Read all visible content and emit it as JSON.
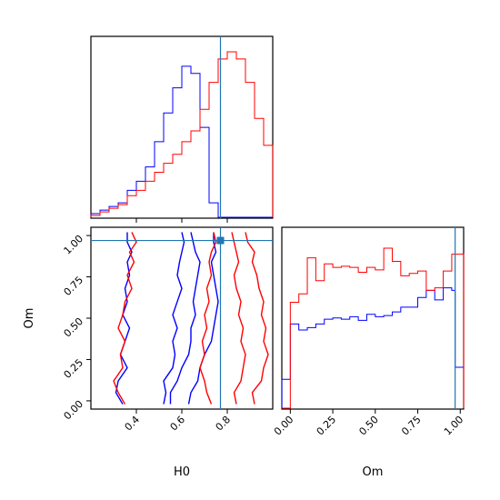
{
  "colors": {
    "series_a": "#0000ff",
    "series_b": "#ff0000",
    "truth": "#1f77b4",
    "axes": "#000000",
    "background": "#ffffff"
  },
  "chart_data": {
    "type": "corner",
    "parameters": [
      "H0",
      "Om"
    ],
    "truth": {
      "H0": 0.77,
      "Om": 0.97
    },
    "panels": [
      {
        "id": "hist-h0",
        "type": "histogram-step",
        "xlim": [
          0.2,
          1.0
        ],
        "x_tick_values": [
          0.4,
          0.6,
          0.8
        ],
        "y_scale": "relative counts",
        "bins": [
          0.2,
          0.24,
          0.28,
          0.32,
          0.36,
          0.4,
          0.44,
          0.48,
          0.52,
          0.56,
          0.6,
          0.64,
          0.68,
          0.72,
          0.76,
          0.8,
          0.84,
          0.88,
          0.92,
          0.96,
          1.0
        ],
        "series": [
          {
            "color": "blue",
            "counts": [
              2,
              4,
              6,
              8,
              15,
              20,
              28,
              42,
              58,
              72,
              84,
              80,
              50,
              8,
              0,
              0,
              0,
              0,
              0,
              0
            ]
          },
          {
            "color": "red",
            "counts": [
              1,
              3,
              5,
              7,
              12,
              15,
              20,
              25,
              30,
              35,
              42,
              48,
              60,
              75,
              88,
              92,
              88,
              75,
              55,
              40
            ]
          }
        ]
      },
      {
        "id": "contour-h0-om",
        "type": "contour",
        "xlabel": "H0",
        "ylabel": "Om",
        "xlim": [
          0.2,
          1.0
        ],
        "ylim": [
          -0.05,
          1.05
        ],
        "x_ticks": [
          "0.4",
          "0.6",
          "0.8"
        ],
        "x_tick_values": [
          0.4,
          0.6,
          0.8
        ],
        "y_ticks": [
          "0.00",
          "0.25",
          "0.50",
          "0.75",
          "1.00"
        ],
        "y_tick_values": [
          0.0,
          0.25,
          0.5,
          0.75,
          1.0
        ],
        "marker": {
          "H0": 0.77,
          "Om": 0.97
        },
        "contours": [
          {
            "color": "blue",
            "level": "outer",
            "x": [
              0.34,
              0.31,
              0.32,
              0.36,
              0.33,
              0.35,
              0.37,
              0.34,
              0.36,
              0.35,
              0.37,
              0.36,
              0.38,
              0.36,
              0.36
            ]
          },
          {
            "color": "blue",
            "level": "outer",
            "x": [
              0.63,
              0.64,
              0.67,
              0.68,
              0.7,
              0.73,
              0.74,
              0.75,
              0.76,
              0.75,
              0.74,
              0.73,
              0.75,
              0.74,
              0.74
            ]
          },
          {
            "color": "blue",
            "level": "inner",
            "x": [
              0.52,
              0.53,
              0.52,
              0.56,
              0.57,
              0.56,
              0.58,
              0.56,
              0.58,
              0.6,
              0.58,
              0.59,
              0.6,
              0.61,
              0.6
            ]
          },
          {
            "color": "blue",
            "level": "inner",
            "x": [
              0.55,
              0.55,
              0.58,
              0.6,
              0.63,
              0.64,
              0.64,
              0.66,
              0.65,
              0.66,
              0.67,
              0.68,
              0.66,
              0.65,
              0.64
            ]
          },
          {
            "color": "red",
            "level": "outer",
            "x": [
              0.35,
              0.32,
              0.3,
              0.34,
              0.33,
              0.35,
              0.32,
              0.34,
              0.35,
              0.38,
              0.36,
              0.39,
              0.37,
              0.4,
              0.38
            ]
          },
          {
            "color": "red",
            "level": "outer",
            "x": [
              0.92,
              0.91,
              0.95,
              0.96,
              0.98,
              0.96,
              0.97,
              0.95,
              0.96,
              0.94,
              0.93,
              0.91,
              0.92,
              0.89,
              0.88
            ]
          },
          {
            "color": "red",
            "level": "inner",
            "x": [
              0.73,
              0.71,
              0.7,
              0.68,
              0.7,
              0.69,
              0.71,
              0.7,
              0.72,
              0.71,
              0.73,
              0.72,
              0.73,
              0.75,
              0.74
            ]
          },
          {
            "color": "red",
            "level": "inner",
            "x": [
              0.84,
              0.83,
              0.86,
              0.87,
              0.88,
              0.86,
              0.87,
              0.85,
              0.86,
              0.84,
              0.83,
              0.85,
              0.84,
              0.83,
              0.82
            ]
          }
        ],
        "contour_y": [
          -0.02,
          0.05,
          0.12,
          0.2,
          0.28,
          0.36,
          0.44,
          0.52,
          0.6,
          0.68,
          0.76,
          0.84,
          0.9,
          0.96,
          1.02
        ]
      },
      {
        "id": "hist-om",
        "type": "histogram-step",
        "xlabel": "Om",
        "xlim": [
          -0.05,
          1.02
        ],
        "x_ticks": [
          "0.00",
          "0.25",
          "0.50",
          "0.75",
          "1.00"
        ],
        "x_tick_values": [
          0.0,
          0.25,
          0.5,
          0.75,
          1.0
        ],
        "y_scale": "relative counts",
        "bins": [
          -0.05,
          0.0,
          0.05,
          0.1,
          0.15,
          0.2,
          0.25,
          0.3,
          0.35,
          0.4,
          0.45,
          0.5,
          0.55,
          0.6,
          0.65,
          0.7,
          0.75,
          0.8,
          0.85,
          0.9,
          0.95,
          0.97,
          1.02
        ],
        "series": [
          {
            "color": "blue",
            "counts": [
              24,
              70,
              65,
              67,
              70,
              74,
              75,
              74,
              76,
              73,
              78,
              76,
              77,
              80,
              84,
              84,
              92,
              98,
              90,
              100,
              98,
              34
            ]
          },
          {
            "color": "red",
            "counts": [
              0,
              88,
              95,
              125,
              106,
              120,
              117,
              118,
              117,
              113,
              117,
              115,
              133,
              122,
              110,
              112,
              114,
              98,
              100,
              114,
              128,
              128
            ]
          }
        ]
      }
    ]
  }
}
